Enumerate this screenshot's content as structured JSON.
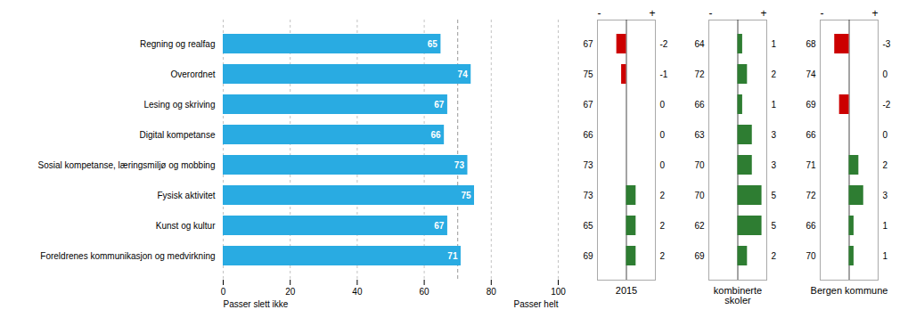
{
  "chart_data": [
    {
      "type": "bar",
      "orientation": "horizontal",
      "categories": [
        "Regning og realfag",
        "Overordnet",
        "Lesing og skriving",
        "Digital kompetanse",
        "Sosial kompetanse, læringsmiljø og mobbing",
        "Fysisk aktivitet",
        "Kunst og kultur",
        "Foreldrenes kommunikasjon og medvirkning"
      ],
      "values": [
        65,
        74,
        67,
        66,
        73,
        75,
        67,
        71
      ],
      "color": "#29ABE2",
      "xlim": [
        0,
        100
      ],
      "xticks": [
        0,
        20,
        40,
        60,
        80,
        100
      ],
      "grid": true,
      "data_labels": true,
      "annotations": [
        {
          "type": "text",
          "text": "Passer slett ikke",
          "x": 0
        },
        {
          "type": "text",
          "text": "Passer helt",
          "x": 100
        },
        {
          "type": "line",
          "x": 70,
          "line_style": "dashed"
        }
      ]
    },
    {
      "type": "bar",
      "orientation": "horizontal",
      "title": "2015",
      "values": [
        -2,
        -1,
        0,
        0,
        0,
        2,
        2,
        2
      ],
      "colors": [
        "#CC0000",
        "#CC0000",
        null,
        null,
        null,
        "#2E7D32",
        "#2E7D32",
        "#2E7D32"
      ],
      "scores": [
        67,
        75,
        67,
        66,
        73,
        73,
        65,
        69
      ],
      "xlim": [
        -6,
        6
      ],
      "tick_labels": false,
      "data_labels": true,
      "annotations": [
        {
          "type": "text",
          "text": "-",
          "x": -6
        },
        {
          "type": "text",
          "text": "+",
          "x": 6
        }
      ]
    },
    {
      "type": "bar",
      "orientation": "horizontal",
      "title": "kombinerte\nskoler",
      "values": [
        1,
        2,
        1,
        3,
        3,
        5,
        5,
        2
      ],
      "colors": [
        "#2E7D32",
        "#2E7D32",
        "#2E7D32",
        "#2E7D32",
        "#2E7D32",
        "#2E7D32",
        "#2E7D32",
        "#2E7D32"
      ],
      "scores": [
        64,
        72,
        66,
        63,
        70,
        70,
        62,
        69
      ],
      "xlim": [
        -6,
        6
      ],
      "tick_labels": false,
      "data_labels": true,
      "annotations": [
        {
          "type": "text",
          "text": "-",
          "x": -6
        },
        {
          "type": "text",
          "text": "+",
          "x": 6
        }
      ]
    },
    {
      "type": "bar",
      "orientation": "horizontal",
      "title": "Bergen kommune",
      "values": [
        -3,
        0,
        -2,
        0,
        2,
        3,
        1,
        1
      ],
      "colors": [
        "#CC0000",
        null,
        "#CC0000",
        null,
        "#2E7D32",
        "#2E7D32",
        "#2E7D32",
        "#2E7D32"
      ],
      "scores": [
        68,
        74,
        69,
        66,
        71,
        72,
        66,
        70
      ],
      "xlim": [
        -6,
        6
      ],
      "tick_labels": false,
      "data_labels": true,
      "annotations": [
        {
          "type": "text",
          "text": "-",
          "x": -6
        },
        {
          "type": "text",
          "text": "+",
          "x": 6
        }
      ]
    }
  ]
}
